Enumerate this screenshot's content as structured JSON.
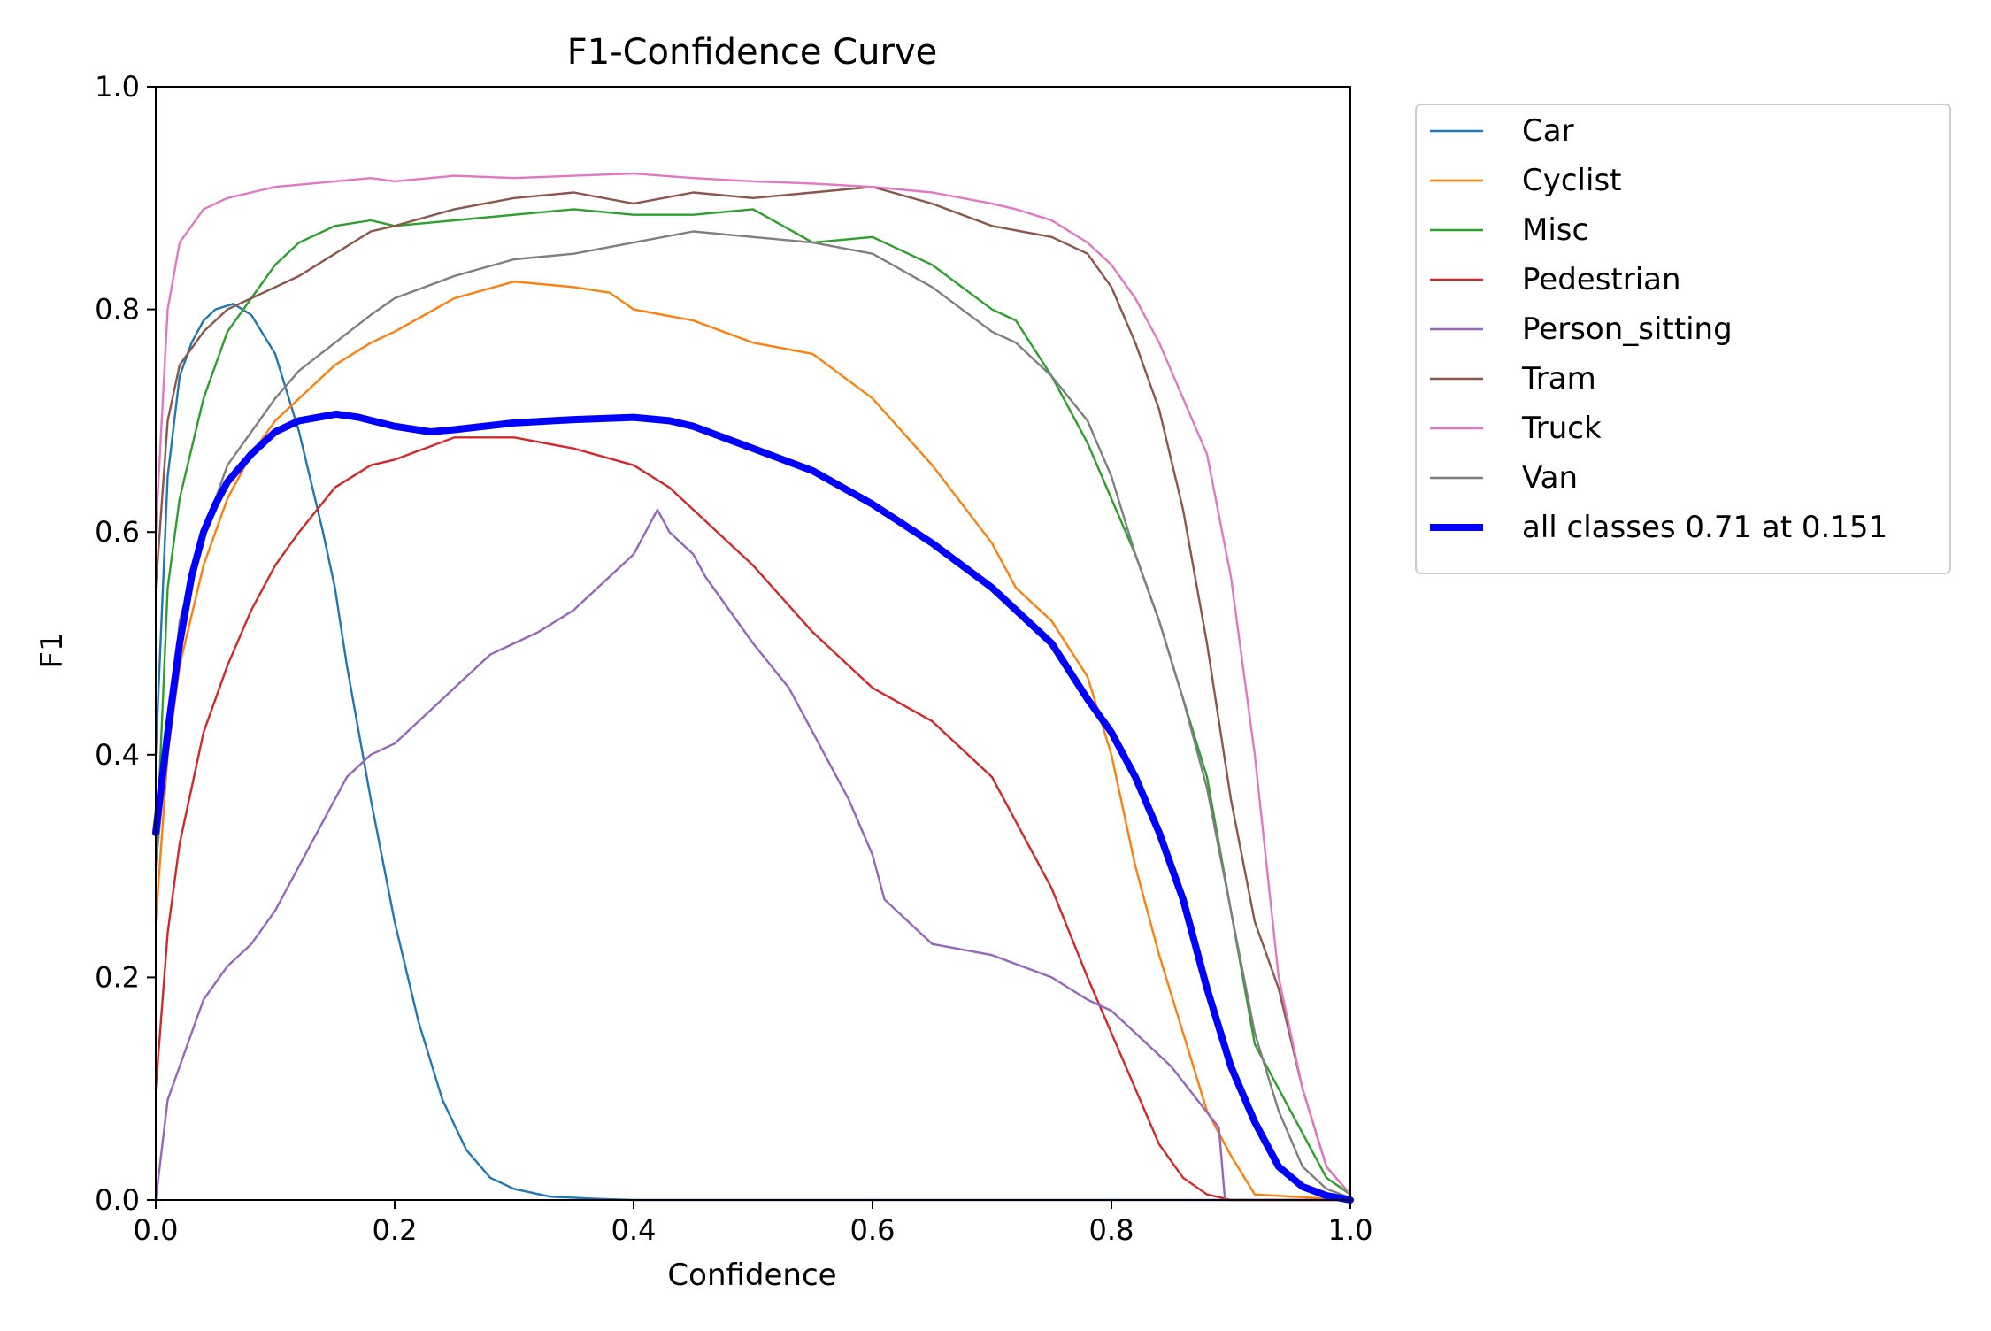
{
  "chart_data": {
    "type": "line",
    "title": "F1-Confidence Curve",
    "xlabel": "Confidence",
    "ylabel": "F1",
    "xlim": [
      0,
      1
    ],
    "ylim": [
      0,
      1
    ],
    "xticks": [
      "0.0",
      "0.2",
      "0.4",
      "0.6",
      "0.8",
      "1.0"
    ],
    "yticks": [
      "0.0",
      "0.2",
      "0.4",
      "0.6",
      "0.8",
      "1.0"
    ],
    "grid": false,
    "legend_position": "outside-upper-right",
    "series": [
      {
        "name": "Car",
        "color": "#1f77b4",
        "width": "thin",
        "x": [
          0,
          0.01,
          0.02,
          0.03,
          0.04,
          0.05,
          0.065,
          0.08,
          0.1,
          0.12,
          0.14,
          0.15,
          0.16,
          0.18,
          0.2,
          0.22,
          0.24,
          0.26,
          0.28,
          0.3,
          0.33,
          0.37,
          0.4,
          1.0
        ],
        "y": [
          0.4,
          0.65,
          0.74,
          0.77,
          0.79,
          0.8,
          0.805,
          0.795,
          0.76,
          0.69,
          0.6,
          0.55,
          0.48,
          0.36,
          0.25,
          0.16,
          0.09,
          0.045,
          0.02,
          0.01,
          0.003,
          0.001,
          0,
          0
        ]
      },
      {
        "name": "Cyclist",
        "color": "#ff7f0e",
        "width": "thin",
        "x": [
          0,
          0.01,
          0.02,
          0.04,
          0.06,
          0.08,
          0.1,
          0.12,
          0.15,
          0.18,
          0.2,
          0.25,
          0.3,
          0.35,
          0.38,
          0.4,
          0.45,
          0.5,
          0.55,
          0.6,
          0.65,
          0.7,
          0.72,
          0.75,
          0.78,
          0.8,
          0.82,
          0.84,
          0.86,
          0.88,
          0.9,
          0.92,
          1.0
        ],
        "y": [
          0.25,
          0.4,
          0.48,
          0.57,
          0.63,
          0.67,
          0.7,
          0.72,
          0.75,
          0.77,
          0.78,
          0.81,
          0.825,
          0.82,
          0.815,
          0.8,
          0.79,
          0.77,
          0.76,
          0.72,
          0.66,
          0.59,
          0.55,
          0.52,
          0.47,
          0.4,
          0.3,
          0.22,
          0.15,
          0.08,
          0.04,
          0.005,
          0
        ]
      },
      {
        "name": "Misc",
        "color": "#2ca02c",
        "width": "thin",
        "x": [
          0,
          0.01,
          0.02,
          0.04,
          0.06,
          0.08,
          0.1,
          0.12,
          0.15,
          0.18,
          0.2,
          0.25,
          0.3,
          0.35,
          0.4,
          0.45,
          0.5,
          0.55,
          0.6,
          0.65,
          0.7,
          0.72,
          0.75,
          0.78,
          0.8,
          0.82,
          0.84,
          0.86,
          0.88,
          0.9,
          0.92,
          0.95,
          0.98,
          1.0
        ],
        "y": [
          0.3,
          0.55,
          0.63,
          0.72,
          0.78,
          0.81,
          0.84,
          0.86,
          0.875,
          0.88,
          0.875,
          0.88,
          0.885,
          0.89,
          0.885,
          0.885,
          0.89,
          0.86,
          0.865,
          0.84,
          0.8,
          0.79,
          0.74,
          0.68,
          0.63,
          0.58,
          0.52,
          0.45,
          0.38,
          0.26,
          0.14,
          0.08,
          0.02,
          0.005
        ]
      },
      {
        "name": "Pedestrian",
        "color": "#d62728",
        "width": "thin",
        "x": [
          0,
          0.01,
          0.02,
          0.04,
          0.06,
          0.08,
          0.1,
          0.12,
          0.15,
          0.18,
          0.2,
          0.25,
          0.3,
          0.35,
          0.4,
          0.43,
          0.45,
          0.5,
          0.55,
          0.6,
          0.65,
          0.7,
          0.72,
          0.75,
          0.78,
          0.8,
          0.82,
          0.84,
          0.86,
          0.88,
          0.9,
          1.0
        ],
        "y": [
          0.1,
          0.24,
          0.32,
          0.42,
          0.48,
          0.53,
          0.57,
          0.6,
          0.64,
          0.66,
          0.665,
          0.685,
          0.685,
          0.675,
          0.66,
          0.64,
          0.62,
          0.57,
          0.51,
          0.46,
          0.43,
          0.38,
          0.34,
          0.28,
          0.2,
          0.15,
          0.1,
          0.05,
          0.02,
          0.005,
          0,
          0
        ]
      },
      {
        "name": "Person_sitting",
        "color": "#9467bd",
        "width": "thin",
        "x": [
          0,
          0.01,
          0.02,
          0.04,
          0.06,
          0.08,
          0.1,
          0.12,
          0.14,
          0.16,
          0.18,
          0.2,
          0.22,
          0.25,
          0.28,
          0.3,
          0.32,
          0.35,
          0.38,
          0.4,
          0.42,
          0.43,
          0.45,
          0.46,
          0.5,
          0.53,
          0.55,
          0.58,
          0.6,
          0.61,
          0.65,
          0.7,
          0.75,
          0.78,
          0.8,
          0.85,
          0.89,
          0.895,
          1.0
        ],
        "y": [
          0.0,
          0.09,
          0.12,
          0.18,
          0.21,
          0.23,
          0.26,
          0.3,
          0.34,
          0.38,
          0.4,
          0.41,
          0.43,
          0.46,
          0.49,
          0.5,
          0.51,
          0.53,
          0.56,
          0.58,
          0.62,
          0.6,
          0.58,
          0.56,
          0.5,
          0.46,
          0.42,
          0.36,
          0.31,
          0.27,
          0.23,
          0.22,
          0.2,
          0.18,
          0.17,
          0.12,
          0.065,
          0,
          0
        ]
      },
      {
        "name": "Tram",
        "color": "#8c564b",
        "width": "thin",
        "x": [
          0,
          0.01,
          0.02,
          0.04,
          0.06,
          0.08,
          0.1,
          0.12,
          0.15,
          0.18,
          0.2,
          0.25,
          0.3,
          0.35,
          0.4,
          0.45,
          0.5,
          0.55,
          0.6,
          0.65,
          0.7,
          0.75,
          0.78,
          0.8,
          0.82,
          0.84,
          0.86,
          0.88,
          0.9,
          0.92,
          0.94,
          0.96,
          0.98,
          1.0
        ],
        "y": [
          0.55,
          0.7,
          0.75,
          0.78,
          0.8,
          0.81,
          0.82,
          0.83,
          0.85,
          0.87,
          0.875,
          0.89,
          0.9,
          0.905,
          0.895,
          0.905,
          0.9,
          0.905,
          0.91,
          0.895,
          0.875,
          0.865,
          0.85,
          0.82,
          0.77,
          0.71,
          0.62,
          0.5,
          0.36,
          0.25,
          0.19,
          0.1,
          0.03,
          0.005
        ]
      },
      {
        "name": "Truck",
        "color": "#e377c2",
        "width": "thin",
        "x": [
          0,
          0.01,
          0.02,
          0.04,
          0.06,
          0.08,
          0.1,
          0.12,
          0.15,
          0.18,
          0.2,
          0.25,
          0.3,
          0.35,
          0.4,
          0.45,
          0.5,
          0.55,
          0.6,
          0.65,
          0.7,
          0.72,
          0.75,
          0.78,
          0.8,
          0.82,
          0.84,
          0.86,
          0.88,
          0.9,
          0.92,
          0.94,
          0.96,
          0.98,
          1.0
        ],
        "y": [
          0.6,
          0.8,
          0.86,
          0.89,
          0.9,
          0.905,
          0.91,
          0.912,
          0.915,
          0.918,
          0.915,
          0.92,
          0.918,
          0.92,
          0.922,
          0.918,
          0.915,
          0.913,
          0.91,
          0.905,
          0.895,
          0.89,
          0.88,
          0.86,
          0.84,
          0.81,
          0.77,
          0.72,
          0.67,
          0.56,
          0.4,
          0.2,
          0.1,
          0.03,
          0.005
        ]
      },
      {
        "name": "Van",
        "color": "#7f7f7f",
        "width": "thin",
        "x": [
          0,
          0.02,
          0.04,
          0.06,
          0.08,
          0.1,
          0.12,
          0.15,
          0.18,
          0.2,
          0.25,
          0.3,
          0.35,
          0.4,
          0.45,
          0.5,
          0.55,
          0.6,
          0.65,
          0.7,
          0.72,
          0.75,
          0.78,
          0.8,
          0.82,
          0.84,
          0.86,
          0.88,
          0.9,
          0.92,
          0.94,
          0.96,
          0.98,
          1.0
        ],
        "y": [
          0.3,
          0.52,
          0.6,
          0.66,
          0.69,
          0.72,
          0.745,
          0.77,
          0.795,
          0.81,
          0.83,
          0.845,
          0.85,
          0.86,
          0.87,
          0.865,
          0.86,
          0.85,
          0.82,
          0.78,
          0.77,
          0.74,
          0.7,
          0.65,
          0.58,
          0.52,
          0.45,
          0.37,
          0.26,
          0.15,
          0.08,
          0.03,
          0.01,
          0.002
        ]
      },
      {
        "name": "all classes 0.71 at 0.151",
        "color": "#0000ff",
        "width": "thick",
        "x": [
          0,
          0.01,
          0.02,
          0.03,
          0.04,
          0.05,
          0.06,
          0.08,
          0.1,
          0.12,
          0.151,
          0.17,
          0.2,
          0.23,
          0.25,
          0.3,
          0.35,
          0.4,
          0.43,
          0.45,
          0.5,
          0.55,
          0.6,
          0.65,
          0.7,
          0.75,
          0.78,
          0.8,
          0.82,
          0.84,
          0.86,
          0.88,
          0.9,
          0.92,
          0.94,
          0.96,
          0.98,
          1.0
        ],
        "y": [
          0.33,
          0.42,
          0.5,
          0.56,
          0.6,
          0.625,
          0.645,
          0.67,
          0.69,
          0.7,
          0.706,
          0.703,
          0.695,
          0.69,
          0.692,
          0.698,
          0.701,
          0.703,
          0.7,
          0.695,
          0.675,
          0.655,
          0.625,
          0.59,
          0.55,
          0.5,
          0.45,
          0.42,
          0.38,
          0.33,
          0.27,
          0.19,
          0.12,
          0.07,
          0.03,
          0.012,
          0.004,
          0
        ]
      }
    ]
  }
}
